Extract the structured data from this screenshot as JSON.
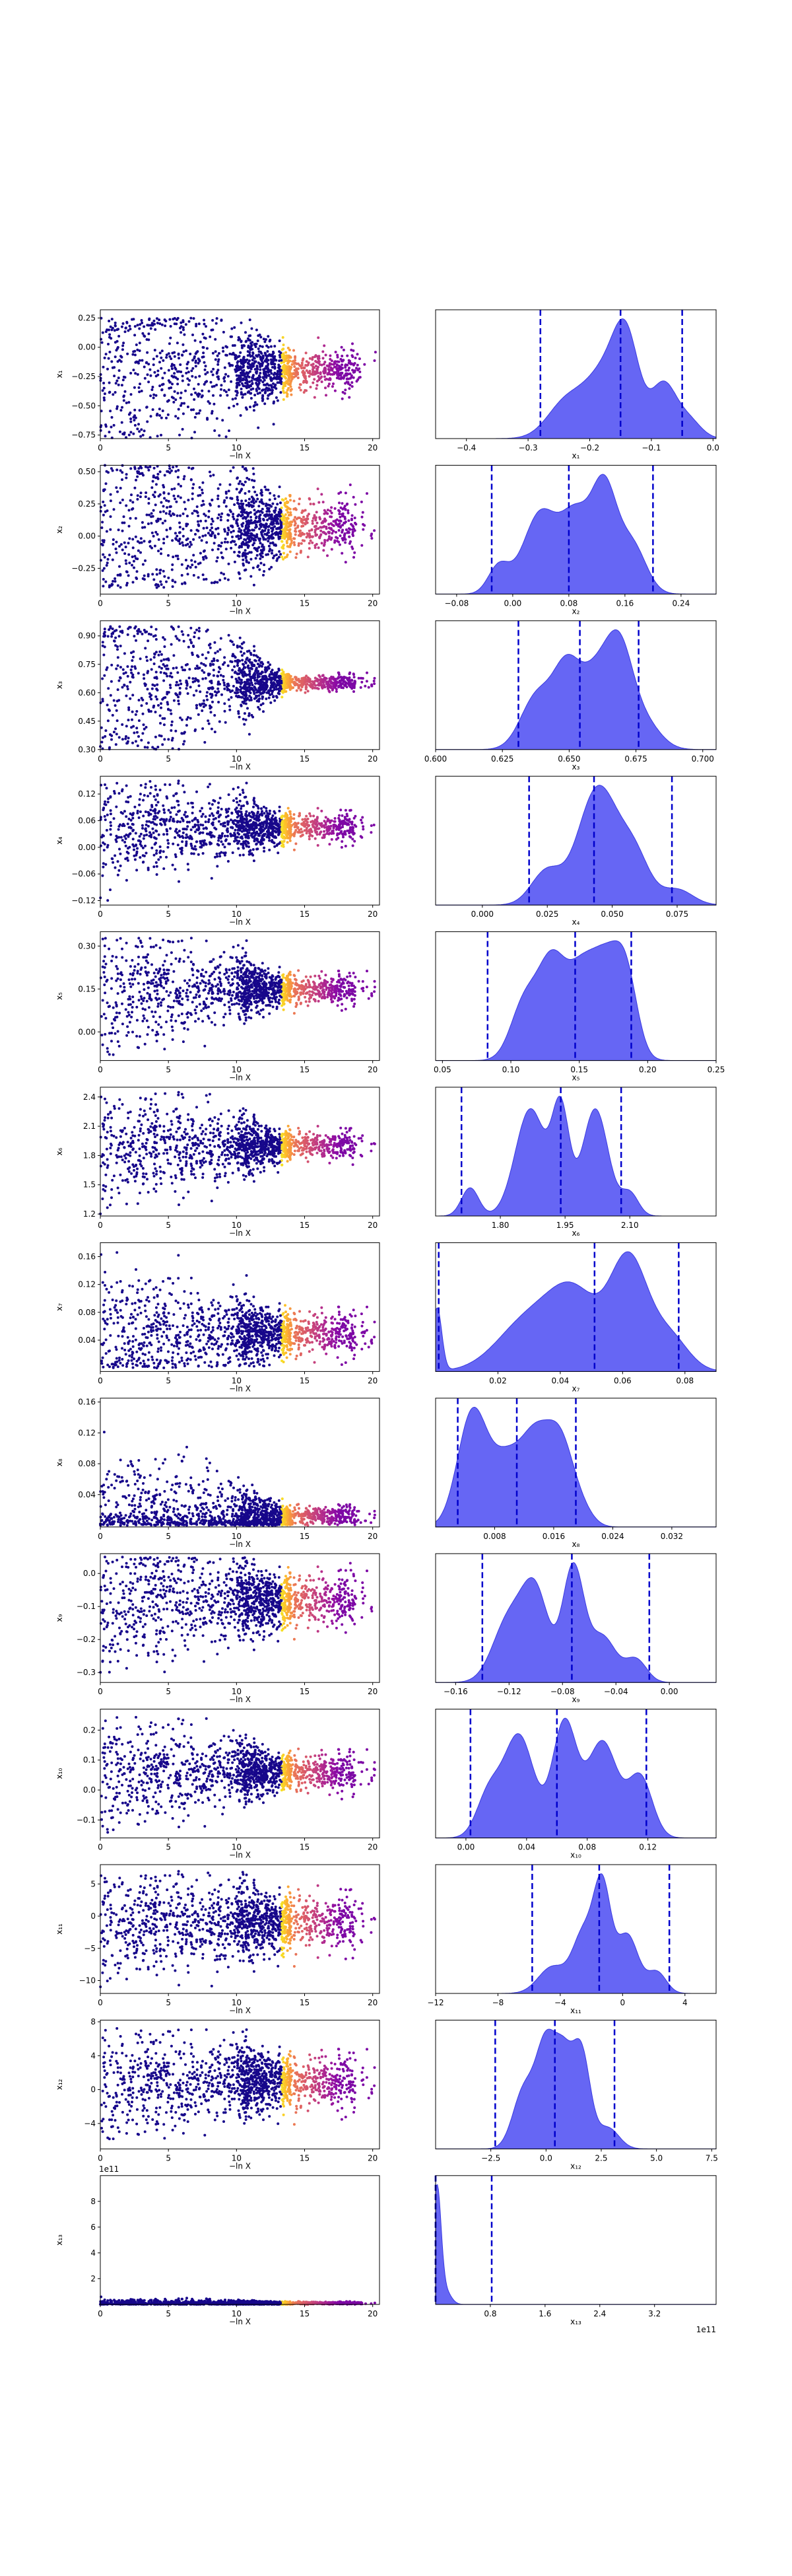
{
  "figure": {
    "title": ""
  },
  "chart_data": [
    {
      "type": "scatter",
      "row": 1,
      "xlabel": "−ln X",
      "ylabel": "x₁",
      "xlim": [
        0,
        20.5
      ],
      "ylim": [
        -0.78,
        0.32
      ],
      "xticks": [
        "0",
        "5",
        "10",
        "15",
        "20"
      ],
      "xtick_values": [
        0,
        5,
        10,
        15,
        20
      ],
      "yticks": [
        "0.25",
        "0.00",
        "−0.25",
        "−0.50",
        "−0.75"
      ],
      "ytick_values": [
        0.25,
        0,
        -0.25,
        -0.5,
        -0.75
      ],
      "center": -0.2,
      "spread": [
        0.45,
        0.08
      ],
      "tail_low": -0.78,
      "tail_high": 0.25
    },
    {
      "type": "area",
      "row": 1,
      "xlabel": "x₁",
      "xlim": [
        -0.45,
        0.005
      ],
      "xticks": [
        "−0.4",
        "−0.3",
        "−0.2",
        "−0.1",
        "0.0"
      ],
      "xtick_values": [
        -0.4,
        -0.3,
        -0.2,
        -0.1,
        0
      ],
      "quantiles": [
        -0.28,
        -0.15,
        -0.05
      ],
      "peaks": [
        {
          "x": -0.24,
          "w": 0.03,
          "h": 0.45
        },
        {
          "x": -0.17,
          "w": 0.035,
          "h": 0.95
        },
        {
          "x": -0.14,
          "w": 0.02,
          "h": 0.9
        },
        {
          "x": -0.08,
          "w": 0.02,
          "h": 0.7
        },
        {
          "x": -0.04,
          "w": 0.02,
          "h": 0.25
        }
      ]
    },
    {
      "type": "scatter",
      "row": 2,
      "xlabel": "−ln X",
      "ylabel": "x₂",
      "xlim": [
        0,
        20.5
      ],
      "ylim": [
        -0.45,
        0.55
      ],
      "xticks": [
        "0",
        "5",
        "10",
        "15",
        "20"
      ],
      "xtick_values": [
        0,
        5,
        10,
        15,
        20
      ],
      "yticks": [
        "0.50",
        "0.25",
        "0.00",
        "−0.25"
      ],
      "ytick_values": [
        0.5,
        0.25,
        0,
        -0.25
      ],
      "center": 0.08,
      "spread": [
        0.45,
        0.1
      ],
      "tail_low": -0.4,
      "tail_high": 0.55
    },
    {
      "type": "area",
      "row": 2,
      "xlabel": "x₂",
      "xlim": [
        -0.11,
        0.29
      ],
      "xticks": [
        "−0.08",
        "0.00",
        "0.08",
        "0.16",
        "0.24"
      ],
      "xtick_values": [
        -0.08,
        0,
        0.08,
        0.16,
        0.24
      ],
      "quantiles": [
        -0.03,
        0.08,
        0.2
      ],
      "peaks": [
        {
          "x": -0.02,
          "w": 0.015,
          "h": 0.25
        },
        {
          "x": 0.04,
          "w": 0.025,
          "h": 0.75
        },
        {
          "x": 0.09,
          "w": 0.02,
          "h": 0.65
        },
        {
          "x": 0.13,
          "w": 0.018,
          "h": 0.95
        },
        {
          "x": 0.17,
          "w": 0.02,
          "h": 0.45
        }
      ]
    },
    {
      "type": "scatter",
      "row": 3,
      "xlabel": "−ln X",
      "ylabel": "x₃",
      "xlim": [
        0,
        20.5
      ],
      "ylim": [
        0.3,
        0.98
      ],
      "xticks": [
        "0",
        "5",
        "10",
        "15",
        "20"
      ],
      "xtick_values": [
        0,
        5,
        10,
        15,
        20
      ],
      "yticks": [
        "0.90",
        "0.75",
        "0.60",
        "0.45",
        "0.30"
      ],
      "ytick_values": [
        0.9,
        0.75,
        0.6,
        0.45,
        0.3
      ],
      "center": 0.655,
      "spread": [
        0.3,
        0.02
      ],
      "tail_low": 0.3,
      "tail_high": 0.95
    },
    {
      "type": "area",
      "row": 3,
      "xlabel": "x₃",
      "xlim": [
        0.6,
        0.705
      ],
      "xticks": [
        "0.600",
        "0.625",
        "0.650",
        "0.675",
        "0.700"
      ],
      "xtick_values": [
        0.6,
        0.625,
        0.65,
        0.675,
        0.7
      ],
      "quantiles": [
        0.631,
        0.654,
        0.676
      ],
      "peaks": [
        {
          "x": 0.638,
          "w": 0.006,
          "h": 0.6
        },
        {
          "x": 0.649,
          "w": 0.005,
          "h": 0.8
        },
        {
          "x": 0.66,
          "w": 0.006,
          "h": 0.8
        },
        {
          "x": 0.669,
          "w": 0.005,
          "h": 0.95
        },
        {
          "x": 0.678,
          "w": 0.006,
          "h": 0.3
        }
      ]
    },
    {
      "type": "scatter",
      "row": 4,
      "xlabel": "−ln X",
      "ylabel": "x₄",
      "xlim": [
        0,
        20.5
      ],
      "ylim": [
        -0.13,
        0.16
      ],
      "xticks": [
        "0",
        "5",
        "10",
        "15",
        "20"
      ],
      "xtick_values": [
        0,
        5,
        10,
        15,
        20
      ],
      "yticks": [
        "0.12",
        "0.06",
        "0.00",
        "−0.06",
        "−0.12"
      ],
      "ytick_values": [
        0.12,
        0.06,
        0,
        -0.06,
        -0.12
      ],
      "center": 0.045,
      "spread": [
        0.07,
        0.015
      ],
      "tail_low": -0.12,
      "tail_high": 0.15
    },
    {
      "type": "area",
      "row": 4,
      "xlabel": "x₄",
      "xlim": [
        -0.018,
        0.09
      ],
      "xticks": [
        "0.000",
        "0.025",
        "0.050",
        "0.075"
      ],
      "xtick_values": [
        0,
        0.025,
        0.05,
        0.075
      ],
      "quantiles": [
        0.018,
        0.043,
        0.073
      ],
      "peaks": [
        {
          "x": 0.025,
          "w": 0.006,
          "h": 0.45
        },
        {
          "x": 0.04,
          "w": 0.006,
          "h": 0.75
        },
        {
          "x": 0.047,
          "w": 0.006,
          "h": 1.0
        },
        {
          "x": 0.058,
          "w": 0.006,
          "h": 0.7
        },
        {
          "x": 0.075,
          "w": 0.006,
          "h": 0.2
        }
      ]
    },
    {
      "type": "scatter",
      "row": 5,
      "xlabel": "−ln X",
      "ylabel": "x₅",
      "xlim": [
        0,
        20.5
      ],
      "ylim": [
        -0.1,
        0.35
      ],
      "xticks": [
        "0",
        "5",
        "10",
        "15",
        "20"
      ],
      "xtick_values": [
        0,
        5,
        10,
        15,
        20
      ],
      "yticks": [
        "0.30",
        "0.15",
        "0.00"
      ],
      "ytick_values": [
        0.3,
        0.15,
        0
      ],
      "center": 0.15,
      "spread": [
        0.12,
        0.025
      ],
      "tail_low": -0.08,
      "tail_high": 0.33
    },
    {
      "type": "area",
      "row": 5,
      "xlabel": "x₅",
      "xlim": [
        0.045,
        0.25
      ],
      "xticks": [
        "0.05",
        "0.10",
        "0.15",
        "0.20",
        "0.25"
      ],
      "xtick_values": [
        0.05,
        0.1,
        0.15,
        0.2,
        0.25
      ],
      "quantiles": [
        0.083,
        0.147,
        0.188
      ],
      "peaks": [
        {
          "x": 0.11,
          "w": 0.01,
          "h": 0.55
        },
        {
          "x": 0.13,
          "w": 0.01,
          "h": 0.9
        },
        {
          "x": 0.15,
          "w": 0.01,
          "h": 0.65
        },
        {
          "x": 0.17,
          "w": 0.012,
          "h": 0.95
        },
        {
          "x": 0.185,
          "w": 0.008,
          "h": 0.55
        }
      ]
    },
    {
      "type": "scatter",
      "row": 6,
      "xlabel": "−ln X",
      "ylabel": "x₆",
      "xlim": [
        0,
        20.5
      ],
      "ylim": [
        1.18,
        2.5
      ],
      "xticks": [
        "0",
        "5",
        "10",
        "15",
        "20"
      ],
      "xtick_values": [
        0,
        5,
        10,
        15,
        20
      ],
      "yticks": [
        "2.4",
        "2.1",
        "1.8",
        "1.5",
        "1.2"
      ],
      "ytick_values": [
        2.4,
        2.1,
        1.8,
        1.5,
        1.2
      ],
      "center": 1.9,
      "spread": [
        0.35,
        0.07
      ],
      "tail_low": 1.2,
      "tail_high": 2.45
    },
    {
      "type": "area",
      "row": 6,
      "xlabel": "x₆",
      "xlim": [
        1.65,
        2.3
      ],
      "xticks": [
        "1.80",
        "1.95",
        "2.10"
      ],
      "xtick_values": [
        1.8,
        1.95,
        2.1
      ],
      "quantiles": [
        1.71,
        1.94,
        2.08
      ],
      "peaks": [
        {
          "x": 1.73,
          "w": 0.02,
          "h": 0.25
        },
        {
          "x": 1.87,
          "w": 0.035,
          "h": 0.95
        },
        {
          "x": 1.94,
          "w": 0.02,
          "h": 0.9
        },
        {
          "x": 2.02,
          "w": 0.03,
          "h": 0.95
        },
        {
          "x": 2.1,
          "w": 0.02,
          "h": 0.2
        }
      ]
    },
    {
      "type": "scatter",
      "row": 7,
      "xlabel": "−ln X",
      "ylabel": "x₇",
      "xlim": [
        0,
        20.5
      ],
      "ylim": [
        -0.005,
        0.18
      ],
      "xticks": [
        "0",
        "5",
        "10",
        "15",
        "20"
      ],
      "xtick_values": [
        0,
        5,
        10,
        15,
        20
      ],
      "yticks": [
        "0.16",
        "0.12",
        "0.08",
        "0.04"
      ],
      "ytick_values": [
        0.16,
        0.12,
        0.08,
        0.04
      ],
      "center": 0.05,
      "spread": [
        0.05,
        0.015
      ],
      "tail_low": 0.0,
      "tail_high": 0.17
    },
    {
      "type": "area",
      "row": 7,
      "xlabel": "x₇",
      "xlim": [
        0.0,
        0.09
      ],
      "xticks": [
        "0.02",
        "0.04",
        "0.06",
        "0.08"
      ],
      "xtick_values": [
        0.02,
        0.04,
        0.06,
        0.08
      ],
      "quantiles": [
        0.001,
        0.051,
        0.078
      ],
      "peaks": [
        {
          "x": 0.0005,
          "w": 0.0015,
          "h": 0.55
        },
        {
          "x": 0.03,
          "w": 0.01,
          "h": 0.45
        },
        {
          "x": 0.045,
          "w": 0.008,
          "h": 0.6
        },
        {
          "x": 0.062,
          "w": 0.006,
          "h": 0.95
        },
        {
          "x": 0.075,
          "w": 0.006,
          "h": 0.3
        }
      ]
    },
    {
      "type": "scatter",
      "row": 8,
      "xlabel": "−ln X",
      "ylabel": "x₈",
      "xlim": [
        0,
        20.5
      ],
      "ylim": [
        -0.002,
        0.165
      ],
      "xticks": [
        "0",
        "5",
        "10",
        "15",
        "20"
      ],
      "xtick_values": [
        0,
        5,
        10,
        15,
        20
      ],
      "yticks": [
        "0.16",
        "0.12",
        "0.08",
        "0.04"
      ],
      "ytick_values": [
        0.16,
        0.12,
        0.08,
        0.04
      ],
      "center": 0.012,
      "spread": [
        0.05,
        0.006
      ],
      "tail_low": 0.0,
      "tail_high": 0.13
    },
    {
      "type": "area",
      "row": 8,
      "xlabel": "x₈",
      "xlim": [
        0.0,
        0.038
      ],
      "xticks": [
        "0.008",
        "0.016",
        "0.024",
        "0.032"
      ],
      "xtick_values": [
        0.008,
        0.016,
        0.024,
        0.032
      ],
      "quantiles": [
        0.003,
        0.011,
        0.019
      ],
      "peaks": [
        {
          "x": 0.005,
          "w": 0.002,
          "h": 0.95
        },
        {
          "x": 0.0095,
          "w": 0.002,
          "h": 0.5
        },
        {
          "x": 0.0135,
          "w": 0.002,
          "h": 0.7
        },
        {
          "x": 0.017,
          "w": 0.0018,
          "h": 0.65
        },
        {
          "x": 0.02,
          "w": 0.0015,
          "h": 0.1
        }
      ]
    },
    {
      "type": "scatter",
      "row": 9,
      "xlabel": "−ln X",
      "ylabel": "x₉",
      "xlim": [
        0,
        20.5
      ],
      "ylim": [
        -0.33,
        0.06
      ],
      "xticks": [
        "0",
        "5",
        "10",
        "15",
        "20"
      ],
      "xtick_values": [
        0,
        5,
        10,
        15,
        20
      ],
      "yticks": [
        "0.0",
        "−0.1",
        "−0.2",
        "−0.3"
      ],
      "ytick_values": [
        0,
        -0.1,
        -0.2,
        -0.3
      ],
      "center": -0.08,
      "spread": [
        0.12,
        0.035
      ],
      "tail_low": -0.3,
      "tail_high": 0.05
    },
    {
      "type": "area",
      "row": 9,
      "xlabel": "x₉",
      "xlim": [
        -0.175,
        0.035
      ],
      "xticks": [
        "−0.16",
        "−0.12",
        "−0.08",
        "−0.04",
        "0.00"
      ],
      "xtick_values": [
        -0.16,
        -0.12,
        -0.08,
        -0.04,
        0
      ],
      "quantiles": [
        -0.14,
        -0.073,
        -0.015
      ],
      "peaks": [
        {
          "x": -0.12,
          "w": 0.012,
          "h": 0.55
        },
        {
          "x": -0.1,
          "w": 0.01,
          "h": 0.75
        },
        {
          "x": -0.072,
          "w": 0.008,
          "h": 1.0
        },
        {
          "x": -0.05,
          "w": 0.01,
          "h": 0.4
        },
        {
          "x": -0.025,
          "w": 0.008,
          "h": 0.2
        }
      ]
    },
    {
      "type": "scatter",
      "row": 10,
      "xlabel": "−ln X",
      "ylabel": "x₁₀",
      "xlim": [
        0,
        20.5
      ],
      "ylim": [
        -0.16,
        0.27
      ],
      "xticks": [
        "0",
        "5",
        "10",
        "15",
        "20"
      ],
      "xtick_values": [
        0,
        5,
        10,
        15,
        20
      ],
      "yticks": [
        "0.2",
        "0.1",
        "0.0",
        "−0.1"
      ],
      "ytick_values": [
        0.2,
        0.1,
        0,
        -0.1
      ],
      "center": 0.06,
      "spread": [
        0.1,
        0.03
      ],
      "tail_low": -0.15,
      "tail_high": 0.25
    },
    {
      "type": "area",
      "row": 10,
      "xlabel": "x₁₀",
      "xlim": [
        -0.02,
        0.165
      ],
      "xticks": [
        "0.00",
        "0.04",
        "0.08",
        "0.12"
      ],
      "xtick_values": [
        0,
        0.04,
        0.08,
        0.12
      ],
      "quantiles": [
        0.003,
        0.06,
        0.119
      ],
      "peaks": [
        {
          "x": 0.015,
          "w": 0.008,
          "h": 0.35
        },
        {
          "x": 0.035,
          "w": 0.01,
          "h": 0.85
        },
        {
          "x": 0.065,
          "w": 0.008,
          "h": 0.95
        },
        {
          "x": 0.09,
          "w": 0.01,
          "h": 0.8
        },
        {
          "x": 0.115,
          "w": 0.008,
          "h": 0.5
        }
      ]
    },
    {
      "type": "scatter",
      "row": 11,
      "xlabel": "−ln X",
      "ylabel": "x₁₁",
      "xlim": [
        0,
        20.5
      ],
      "ylim": [
        -12,
        8
      ],
      "xticks": [
        "0",
        "5",
        "10",
        "15",
        "20"
      ],
      "xtick_values": [
        0,
        5,
        10,
        15,
        20
      ],
      "yticks": [
        "5",
        "0",
        "−5",
        "−10"
      ],
      "ytick_values": [
        5,
        0,
        -5,
        -10
      ],
      "center": -1,
      "spread": [
        5,
        2
      ],
      "tail_low": -11,
      "tail_high": 7
    },
    {
      "type": "area",
      "row": 11,
      "xlabel": "x₁₁",
      "xlim": [
        -12,
        6
      ],
      "xticks": [
        "−12",
        "−8",
        "−4",
        "0",
        "4"
      ],
      "xtick_values": [
        -12,
        -8,
        -4,
        0,
        4
      ],
      "quantiles": [
        -5.8,
        -1.5,
        3.0
      ],
      "peaks": [
        {
          "x": -4.5,
          "w": 0.9,
          "h": 0.25
        },
        {
          "x": -2.5,
          "w": 0.7,
          "h": 0.55
        },
        {
          "x": -1.3,
          "w": 0.55,
          "h": 0.95
        },
        {
          "x": 0.3,
          "w": 0.7,
          "h": 0.55
        },
        {
          "x": 2.2,
          "w": 0.6,
          "h": 0.2
        }
      ]
    },
    {
      "type": "scatter",
      "row": 12,
      "xlabel": "−ln X",
      "ylabel": "x₁₂",
      "xlim": [
        0,
        20.5
      ],
      "ylim": [
        -7,
        8.2
      ],
      "xticks": [
        "0",
        "5",
        "10",
        "15",
        "20"
      ],
      "xtick_values": [
        0,
        5,
        10,
        15,
        20
      ],
      "yticks": [
        "8",
        "4",
        "0",
        "−4"
      ],
      "ytick_values": [
        8,
        4,
        0,
        -4
      ],
      "center": 1,
      "spread": [
        3.5,
        1.5
      ],
      "tail_low": -6,
      "tail_high": 7.5
    },
    {
      "type": "area",
      "row": 12,
      "xlabel": "x₁₂",
      "xlim": [
        -5,
        7.7
      ],
      "xticks": [
        "−2.5",
        "0.0",
        "2.5",
        "5.0",
        "7.5"
      ],
      "xtick_values": [
        -2.5,
        0,
        2.5,
        5,
        7.5
      ],
      "quantiles": [
        -2.3,
        0.4,
        3.1
      ],
      "peaks": [
        {
          "x": -1.0,
          "w": 0.5,
          "h": 0.55
        },
        {
          "x": 0.0,
          "w": 0.45,
          "h": 0.95
        },
        {
          "x": 0.8,
          "w": 0.4,
          "h": 0.75
        },
        {
          "x": 1.6,
          "w": 0.4,
          "h": 0.9
        },
        {
          "x": 2.8,
          "w": 0.5,
          "h": 0.2
        }
      ]
    },
    {
      "type": "scatter",
      "row": 13,
      "xlabel": "−ln X",
      "ylabel": "x₁₃",
      "y_offset_label": "1e11",
      "xlim": [
        0,
        20.5
      ],
      "ylim": [
        0,
        10
      ],
      "xticks": [
        "0",
        "5",
        "10",
        "15",
        "20"
      ],
      "xtick_values": [
        0,
        5,
        10,
        15,
        20
      ],
      "yticks": [
        "8",
        "6",
        "4",
        "2"
      ],
      "ytick_values": [
        8,
        6,
        4,
        2
      ],
      "center": 0.1,
      "spread": [
        0.2,
        0.05
      ],
      "tail_low": 0,
      "tail_high": 9.5
    },
    {
      "type": "area",
      "row": 13,
      "xlabel": "x₁₃",
      "x_offset_label": "1e11",
      "xlim": [
        0,
        4.1
      ],
      "xticks": [
        "0.8",
        "1.6",
        "2.4",
        "3.2"
      ],
      "xtick_values": [
        0.8,
        1.6,
        2.4,
        3.2
      ],
      "quantiles": [
        0.0,
        0.0,
        0.82
      ],
      "peaks": [
        {
          "x": 0.02,
          "w": 0.06,
          "h": 0.95
        },
        {
          "x": 0.15,
          "w": 0.08,
          "h": 0.1
        }
      ]
    }
  ]
}
